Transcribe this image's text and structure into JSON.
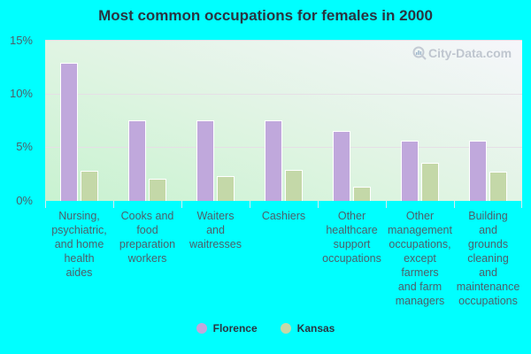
{
  "chart_data": {
    "type": "bar",
    "title": "Most common occupations for females in 2000",
    "xlabel": "",
    "ylabel": "",
    "ylim": [
      0,
      15
    ],
    "yticks": [
      "0%",
      "5%",
      "10%",
      "15%"
    ],
    "grid": true,
    "legend_position": "bottom",
    "categories": [
      "Nursing, psychiatric, and home health aides",
      "Cooks and food preparation workers",
      "Waiters and waitresses",
      "Cashiers",
      "Other healthcare support occupations",
      "Other management occupations, except farmers and farm managers",
      "Building and grounds cleaning and maintenance occupations"
    ],
    "category_labels_wrapped": [
      "Nursing,\npsychiatric,\nand home\nhealth\naides",
      "Cooks and\nfood\npreparation\nworkers",
      "Waiters\nand\nwaitresses",
      "Cashiers",
      "Other\nhealthcare\nsupport\noccupations",
      "Other\nmanagement\noccupations,\nexcept\nfarmers\nand farm\nmanagers",
      "Building\nand\ngrounds\ncleaning\nand\nmaintenance\noccupations"
    ],
    "series": [
      {
        "name": "Florence",
        "color": "#c0a8dc",
        "values": [
          12.8,
          7.4,
          7.4,
          7.4,
          6.4,
          5.5,
          5.5
        ]
      },
      {
        "name": "Kansas",
        "color": "#c4d8a8",
        "values": [
          2.7,
          2.0,
          2.2,
          2.8,
          1.2,
          3.5,
          2.6
        ]
      }
    ],
    "unit": "%"
  },
  "watermark": "City-Data.com"
}
